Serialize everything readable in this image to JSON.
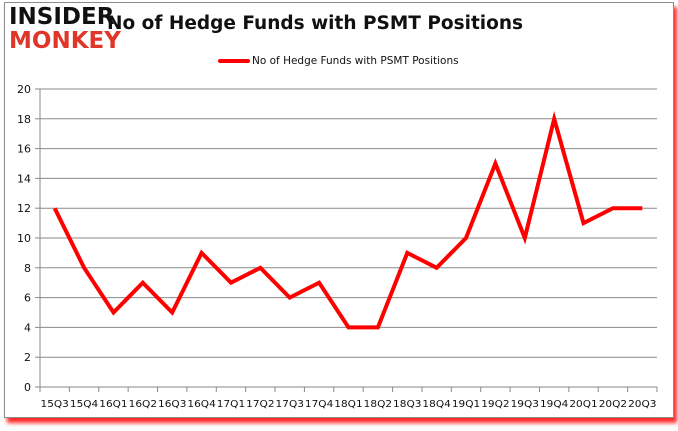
{
  "logo": {
    "line1": "INSIDER",
    "line2": "MONKEY"
  },
  "header": {
    "title": "No of Hedge Funds with PSMT Positions"
  },
  "legend": {
    "label": "No of Hedge Funds with PSMT Positions",
    "color": "#ff0000"
  },
  "chart_data": {
    "type": "line",
    "title": "No of Hedge Funds with PSMT Positions",
    "xlabel": "",
    "ylabel": "",
    "ylim": [
      0,
      20
    ],
    "yticks": [
      0,
      2,
      4,
      6,
      8,
      10,
      12,
      14,
      16,
      18,
      20
    ],
    "grid": true,
    "legend_position": "top",
    "categories": [
      "15Q3",
      "15Q4",
      "16Q1",
      "16Q2",
      "16Q3",
      "16Q4",
      "17Q1",
      "17Q2",
      "17Q3",
      "17Q4",
      "18Q1",
      "18Q2",
      "18Q3",
      "18Q4",
      "19Q1",
      "19Q2",
      "19Q3",
      "19Q4",
      "20Q1",
      "20Q2",
      "20Q3"
    ],
    "series": [
      {
        "name": "No of Hedge Funds with PSMT Positions",
        "color": "#ff0000",
        "values": [
          12,
          8,
          5,
          7,
          5,
          9,
          7,
          8,
          6,
          7,
          4,
          4,
          9,
          8,
          10,
          15,
          10,
          18,
          11,
          12,
          12
        ]
      }
    ]
  }
}
